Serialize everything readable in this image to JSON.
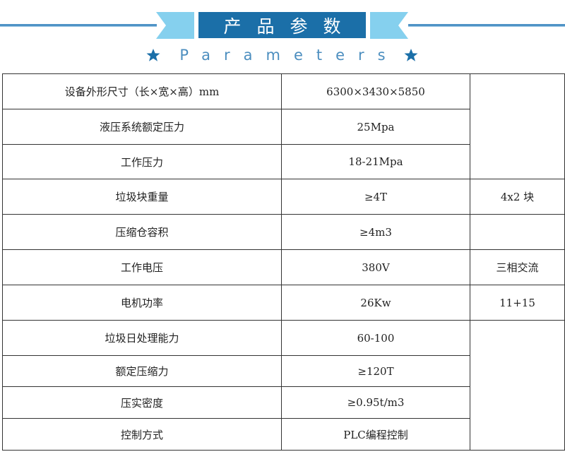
{
  "header": {
    "title": "产品参数",
    "subtitle": "Parameters",
    "colors": {
      "primary": "#1b6fa8",
      "ribbon": "#85d0ee",
      "line": "#4f93c6"
    },
    "icons": [
      "star-icon",
      "star-icon"
    ]
  },
  "table": {
    "rows": [
      {
        "label": "设备外形尺寸（长×宽×高）mm",
        "value": "6300×3430×5850"
      },
      {
        "label": "液压系统额定压力",
        "value": "25Mpa"
      },
      {
        "label": "工作压力",
        "value": "18-21Mpa"
      },
      {
        "label": "垃圾块重量",
        "value": "≥4T",
        "note": "4x2 块"
      },
      {
        "label": "压缩仓容积",
        "value": "≥4m3",
        "note": ""
      },
      {
        "label": "工作电压",
        "value": "380V",
        "note": "三相交流"
      },
      {
        "label": "电机功率",
        "value": "26Kw",
        "note": "11+15"
      },
      {
        "label": "垃圾日处理能力",
        "value": "60-100"
      },
      {
        "label": "额定压缩力",
        "value": "≥120T"
      },
      {
        "label": "压实密度",
        "value": "≥0.95t/m3"
      },
      {
        "label": "控制方式",
        "value": "PLC编程控制"
      }
    ]
  }
}
